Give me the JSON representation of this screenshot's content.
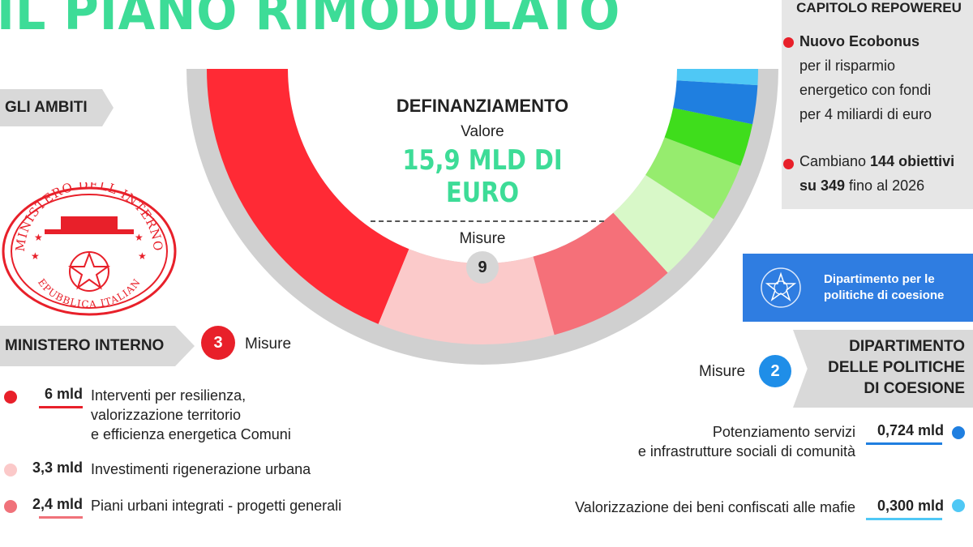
{
  "title": "IL PIANO RIMODULATO",
  "left_tag": "GLI AMBITI",
  "seal": {
    "top_text": "MINISTERO DELL INTERNO",
    "bottom_text": "REPUBBLICA ITALIANA"
  },
  "center": {
    "heading": "DEFINANZIAMENTO",
    "value_label": "Valore",
    "value": "15,9 MLD DI EURO",
    "misure_label": "Misure",
    "misure_count": "9"
  },
  "ministero": {
    "tag": "MINISTERO INTERNO",
    "count": "3",
    "count_label": "Misure",
    "items": [
      {
        "amount": "6 mld",
        "lines": [
          "Interventi per resilienza,",
          "valorizzazione territorio",
          "e efficienza energetica Comuni"
        ],
        "color": "#e8202a"
      },
      {
        "amount": "3,3 mld",
        "lines": [
          "Investimenti rigenerazione urbana"
        ],
        "color": "#fbc9c9"
      },
      {
        "amount": "2,4 mld",
        "lines": [
          "Piani urbani integrati - progetti generali"
        ],
        "color": "#f0727a"
      }
    ]
  },
  "repower": {
    "title": "CAPITOLO REPOWEREU",
    "bullet1_bold": "Nuovo Ecobonus",
    "bullet1_lines": [
      "per il risparmio",
      "energetico con fondi",
      "per 4 miliardi di euro"
    ],
    "bullet2_pre": "Cambiano ",
    "bullet2_bold1": "144 obiettivi",
    "bullet2_bold2": "su 349",
    "bullet2_post": " fino al 2026",
    "bullet_color": "#e8202a"
  },
  "dipartimento": {
    "box_line1": "Dipartimento per le",
    "box_line2": "politiche di coesione",
    "tag_lines": [
      "DIPARTIMENTO",
      "DELLE POLITICHE",
      "DI COESIONE"
    ],
    "count": "2",
    "count_label": "Misure",
    "items": [
      {
        "amount": "0,724 mld",
        "lines": [
          "Potenziamento servizi",
          "e infrastrutture sociali di comunità"
        ],
        "color": "#1f7fe0"
      },
      {
        "amount": "0,300 mld",
        "lines": [
          "Valorizzazione dei beni confiscati alle mafie"
        ],
        "color": "#4fc8f5"
      }
    ]
  },
  "chart_data": {
    "type": "pie",
    "style": "half-donut",
    "title": "DEFINANZIAMENTO",
    "unit": "mld di euro",
    "series": [
      {
        "label": "Interventi per resilienza, valorizzazione territorio e efficienza energetica Comuni",
        "value": 6.0,
        "color": "#ff2a35"
      },
      {
        "label": "Investimenti rigenerazione urbana",
        "value": 3.3,
        "color": "#fbcaca"
      },
      {
        "label": "Piani urbani integrati - progetti generali",
        "value": 2.4,
        "color": "#f57079"
      },
      {
        "label": "",
        "value": 1.3,
        "color": "#d8f8c8"
      },
      {
        "label": "",
        "value": 1.1,
        "color": "#96ec6e"
      },
      {
        "label": "",
        "value": 0.8,
        "color": "#3fdd1c"
      },
      {
        "label": "Potenziamento servizi e infrastrutture sociali di comunità",
        "value": 0.724,
        "color": "#1f7fe0"
      },
      {
        "label": "Valorizzazione dei beni confiscati alle mafie",
        "value": 0.3,
        "color": "#4fc8f5"
      }
    ]
  }
}
